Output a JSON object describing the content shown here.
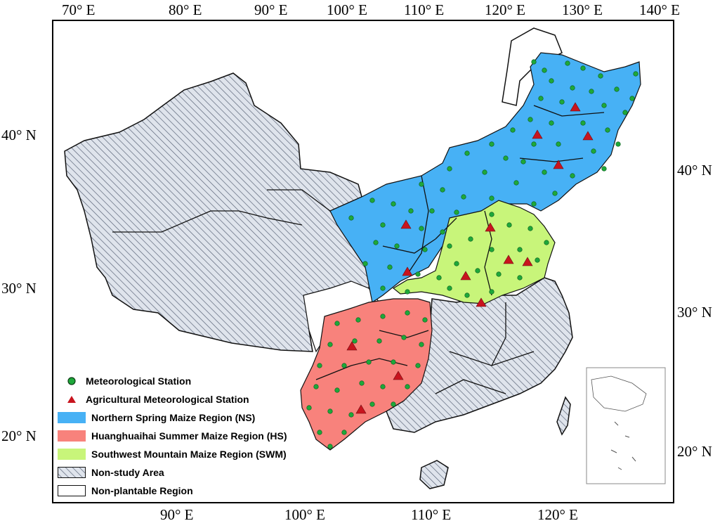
{
  "map": {
    "top_lon_labels": [
      "70° E",
      "80° E",
      "90° E",
      "100° E",
      "110° E",
      "120° E",
      "130° E",
      "140° E"
    ],
    "bottom_lon_labels": [
      "90° E",
      "100° E",
      "110° E",
      "120° E"
    ],
    "left_lat_labels": [
      "40° N",
      "30° N",
      "20° N"
    ],
    "right_lat_labels": [
      "40° N",
      "30° N",
      "20° N"
    ]
  },
  "legend": {
    "items": [
      {
        "label": "Meteorological Station",
        "symbol": "green-circle"
      },
      {
        "label": "Agricultural Meteorological Station",
        "symbol": "red-triangle"
      },
      {
        "label": "Northern Spring Maize Region (NS)",
        "symbol": "blue-swatch",
        "color": "#47b1f5"
      },
      {
        "label": "Huanghuaihai Summer Maize Region (HS)",
        "symbol": "red-swatch",
        "color": "#f8827c"
      },
      {
        "label": "Southwest Mountain Maize Region (SWM)",
        "symbol": "green-swatch",
        "color": "#c8f57a"
      },
      {
        "label": "Non-study Area",
        "symbol": "hatched-swatch"
      },
      {
        "label": "Non-plantable Region",
        "symbol": "white-swatch"
      }
    ]
  },
  "colors": {
    "ns": "#47b1f5",
    "hs": "#f8827c",
    "swm": "#c8f57a",
    "station": "#1ea83a",
    "agri_station": "#c8141e",
    "non_study_fill": "#dfe4ec",
    "hatch": "#5a6478"
  }
}
